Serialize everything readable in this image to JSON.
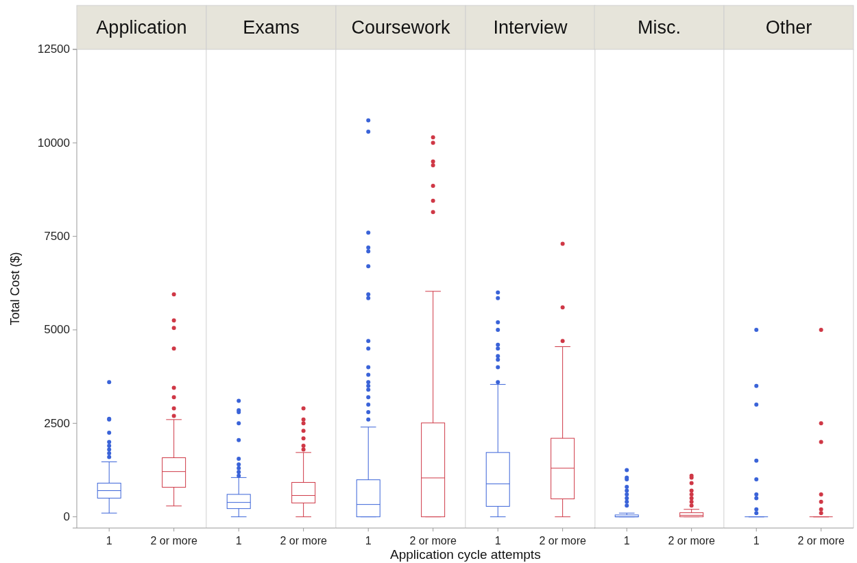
{
  "chart_data": [
    {
      "type": "box",
      "title": "Application",
      "ylabel": "Total Cost ($)",
      "categories": [
        "1",
        "2 or more"
      ],
      "colors": [
        "#3a63d8",
        "#cf3846"
      ],
      "ylim": [
        -300,
        12500
      ],
      "yticks": [
        0,
        2500,
        5000,
        7500,
        10000,
        12500
      ],
      "boxes": [
        {
          "low": 100,
          "q1": 500,
          "median": 700,
          "q3": 900,
          "high": 1470,
          "outliers": [
            1600,
            1700,
            1800,
            1900,
            2000,
            2250,
            2600,
            2620,
            3600
          ]
        },
        {
          "low": 290,
          "q1": 790,
          "median": 1210,
          "q3": 1580,
          "high": 2600,
          "outliers": [
            2700,
            2900,
            3200,
            3450,
            4500,
            5050,
            5250,
            5950
          ]
        }
      ]
    },
    {
      "type": "box",
      "title": "Exams",
      "categories": [
        "1",
        "2 or more"
      ],
      "colors": [
        "#3a63d8",
        "#cf3846"
      ],
      "ylim": [
        -300,
        12500
      ],
      "tick_labels": "x",
      "boxes": [
        {
          "low": 0,
          "q1": 220,
          "median": 385,
          "q3": 600,
          "high": 1050,
          "outliers": [
            1100,
            1200,
            1300,
            1400,
            1550,
            2050,
            2500,
            2800,
            2850,
            3100
          ]
        },
        {
          "low": 0,
          "q1": 370,
          "median": 570,
          "q3": 920,
          "high": 1720,
          "outliers": [
            1800,
            1900,
            2100,
            2300,
            2500,
            2600,
            2900
          ]
        }
      ]
    },
    {
      "type": "box",
      "title": "Coursework",
      "xlabel": "Application cycle attempts",
      "categories": [
        "1",
        "2 or more"
      ],
      "colors": [
        "#3a63d8",
        "#cf3846"
      ],
      "ylim": [
        -300,
        12500
      ],
      "tick_labels": "x",
      "boxes": [
        {
          "low": 0,
          "q1": 0,
          "median": 330,
          "q3": 990,
          "high": 2400,
          "outliers": [
            2600,
            2800,
            3000,
            3200,
            3400,
            3500,
            3600,
            3800,
            4000,
            4500,
            4700,
            5850,
            5950,
            6700,
            7100,
            7200,
            7600,
            10300,
            10600
          ]
        },
        {
          "low": 0,
          "q1": 0,
          "median": 1040,
          "q3": 2510,
          "high": 6030,
          "outliers": [
            8150,
            8450,
            8850,
            9400,
            9500,
            10000,
            10150
          ]
        }
      ]
    },
    {
      "type": "box",
      "title": "Interview",
      "categories": [
        "1",
        "2 or more"
      ],
      "colors": [
        "#3a63d8",
        "#cf3846"
      ],
      "ylim": [
        -300,
        12500
      ],
      "tick_labels": "x",
      "boxes": [
        {
          "low": 0,
          "q1": 280,
          "median": 880,
          "q3": 1720,
          "high": 3540,
          "outliers": [
            3600,
            4000,
            4200,
            4300,
            4500,
            4600,
            5000,
            5200,
            5850,
            6000
          ]
        },
        {
          "low": 0,
          "q1": 480,
          "median": 1300,
          "q3": 2100,
          "high": 4550,
          "outliers": [
            4700,
            5600,
            7300
          ]
        }
      ]
    },
    {
      "type": "box",
      "title": "Misc.",
      "categories": [
        "1",
        "2 or more"
      ],
      "colors": [
        "#3a63d8",
        "#cf3846"
      ],
      "ylim": [
        -300,
        12500
      ],
      "tick_labels": "x",
      "boxes": [
        {
          "low": 0,
          "q1": 0,
          "median": 0,
          "q3": 50,
          "high": 100,
          "outliers": [
            300,
            400,
            500,
            600,
            700,
            800,
            1000,
            1050,
            1250
          ]
        },
        {
          "low": 0,
          "q1": 0,
          "median": 40,
          "q3": 110,
          "high": 200,
          "outliers": [
            300,
            400,
            500,
            600,
            700,
            900,
            1050,
            1100
          ]
        }
      ]
    },
    {
      "type": "box",
      "title": "Other",
      "categories": [
        "1",
        "2 or more"
      ],
      "colors": [
        "#3a63d8",
        "#cf3846"
      ],
      "ylim": [
        -300,
        12500
      ],
      "tick_labels": "x",
      "boxes": [
        {
          "low": 0,
          "q1": 0,
          "median": 0,
          "q3": 0,
          "high": 0,
          "outliers": [
            100,
            200,
            500,
            600,
            1000,
            1500,
            3000,
            3500,
            5000
          ]
        },
        {
          "low": 0,
          "q1": 0,
          "median": 0,
          "q3": 0,
          "high": 0,
          "outliers": [
            100,
            200,
            400,
            600,
            2000,
            2500,
            5000
          ]
        }
      ]
    }
  ]
}
